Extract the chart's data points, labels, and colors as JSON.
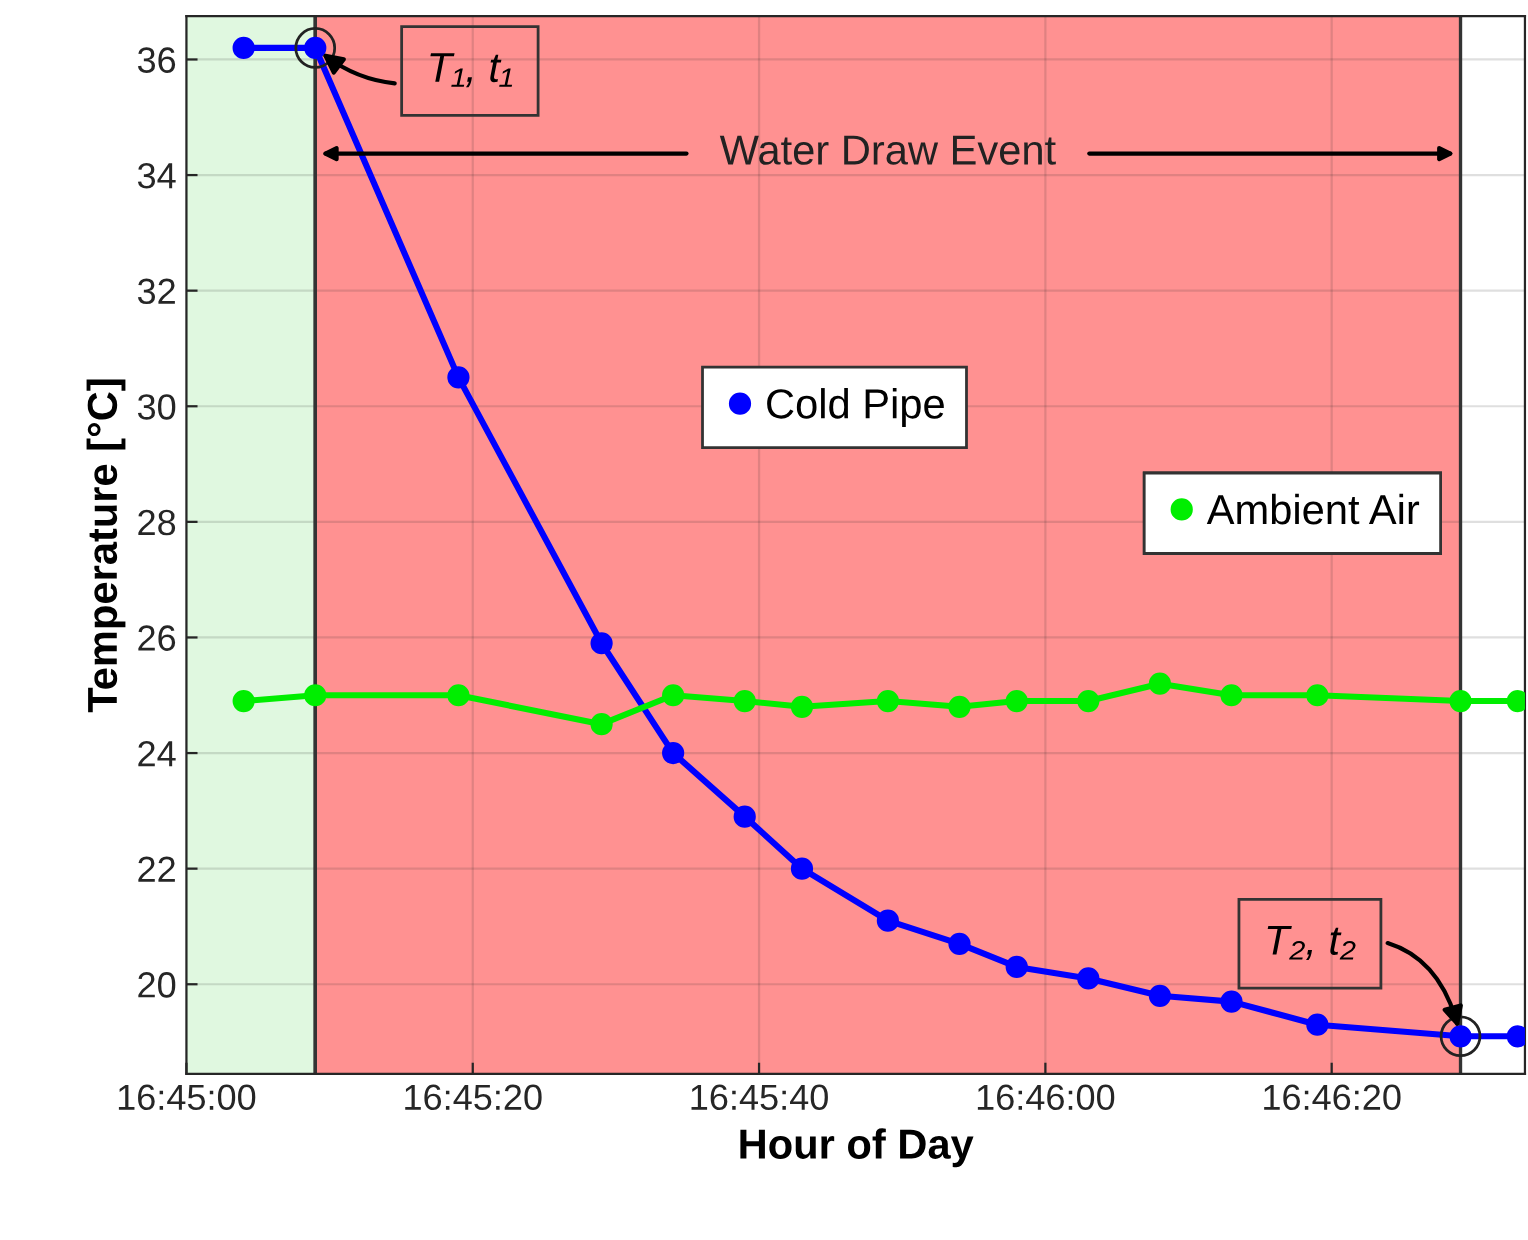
{
  "chart_data": {
    "type": "line",
    "xlabel": "Hour of Day",
    "ylabel": "Temperature [°C]",
    "x": [
      16.751111,
      16.7525,
      16.755278,
      16.758056,
      16.759444,
      16.760833,
      16.761944,
      16.763611,
      16.765,
      16.766111,
      16.7675,
      16.768889,
      16.770278,
      16.771944,
      16.774722,
      16.775833
    ],
    "series": [
      {
        "name": "Cold Pipe",
        "color": "#0000ff",
        "values": [
          36.2,
          36.2,
          30.5,
          25.9,
          24.0,
          22.9,
          22.0,
          21.1,
          20.7,
          20.3,
          20.1,
          19.8,
          19.7,
          19.3,
          19.1,
          19.1
        ]
      },
      {
        "name": "Ambient Air",
        "color": "#00ee00",
        "values": [
          24.9,
          25.0,
          25.0,
          24.5,
          25.0,
          24.9,
          24.8,
          24.9,
          24.8,
          24.9,
          24.9,
          25.2,
          25.0,
          25.0,
          24.9,
          24.9
        ]
      }
    ],
    "xlim": [
      16.75,
      16.775972
    ],
    "xticks": [
      {
        "value": 16.75,
        "label": "16:45:00"
      },
      {
        "value": 16.755556,
        "label": "16:45:20"
      },
      {
        "value": 16.761111,
        "label": "16:45:40"
      },
      {
        "value": 16.766667,
        "label": "16:46:00"
      },
      {
        "value": 16.772222,
        "label": "16:46:20"
      }
    ],
    "ylim": [
      18.45,
      36.75
    ],
    "yticks": [
      20,
      22,
      24,
      26,
      28,
      30,
      32,
      34,
      36
    ],
    "bands": [
      {
        "axis": "x",
        "from": 16.75,
        "to": 16.7525,
        "color": "#e0f8e0"
      },
      {
        "axis": "x",
        "from": 16.7525,
        "to": 16.774722,
        "color": "#ff0000",
        "label": "Water Draw Event"
      }
    ],
    "annotations": [
      {
        "text": "T₁, t₁",
        "x": 16.7525,
        "y": 36.2
      },
      {
        "text": "T₂, t₂",
        "x": 16.774722,
        "y": 19.1
      }
    ],
    "legend": "right",
    "grid": true,
    "marker": "circle",
    "line_style": "solid"
  }
}
